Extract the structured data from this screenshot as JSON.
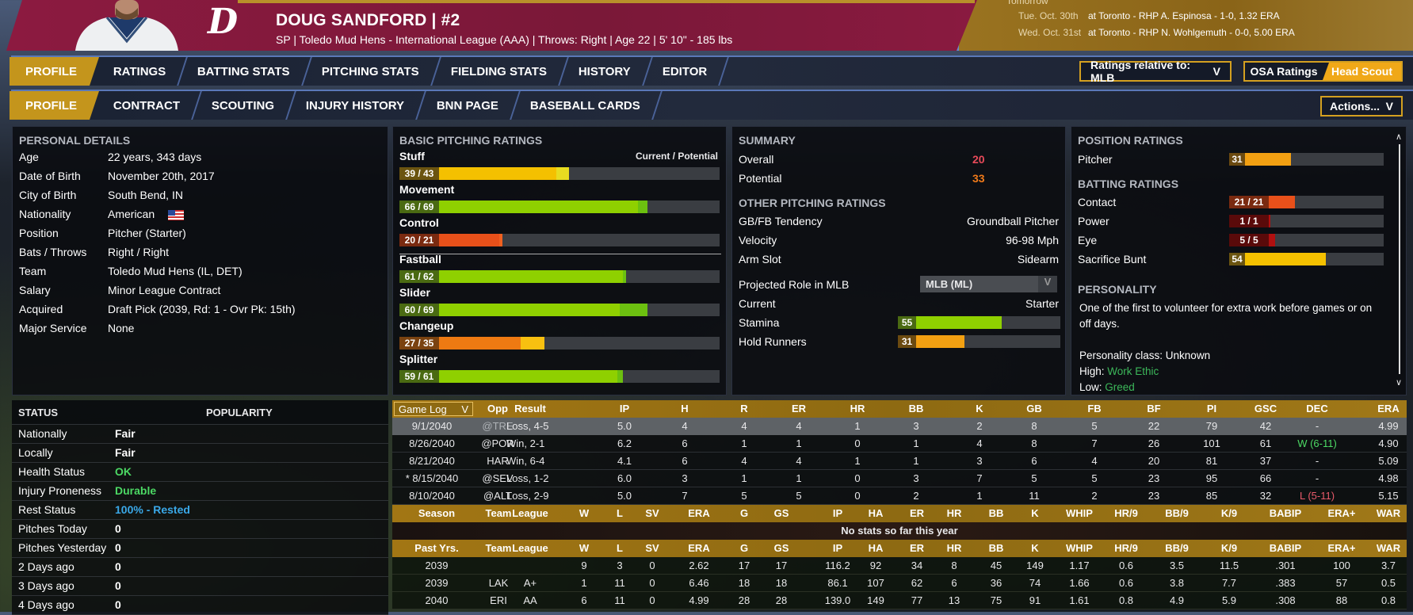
{
  "header": {
    "logo_letter": "D",
    "player_name": "DOUG SANDFORD  |  #2",
    "subline": "SP | Toledo Mud Hens - International League (AAA)  |  Throws: Right  |  Age 22  |  5' 10\" - 185 lbs",
    "upcoming_label": "Tomorrow",
    "upcoming": [
      {
        "date": "Tue. Oct. 30th",
        "text": "at Toronto - RHP A. Espinosa - 1-0, 1.32 ERA"
      },
      {
        "date": "Wed. Oct. 31st",
        "text": "at Toronto - RHP N. Wohlgemuth - 0-0, 5.00 ERA"
      }
    ]
  },
  "main_tabs": [
    "PROFILE",
    "RATINGS",
    "BATTING STATS",
    "PITCHING STATS",
    "FIELDING STATS",
    "HISTORY",
    "EDITOR"
  ],
  "sub_tabs": [
    "PROFILE",
    "CONTRACT",
    "SCOUTING",
    "INJURY HISTORY",
    "BNN PAGE",
    "BASEBALL CARDS"
  ],
  "controls": {
    "ratings_relative": "Ratings relative to: MLB",
    "chevron": "V",
    "osa": "OSA Ratings",
    "head_scout": "Head Scout",
    "actions": "Actions..."
  },
  "personal": {
    "title": "PERSONAL DETAILS",
    "rows": [
      {
        "label": "Age",
        "value": "22 years, 343 days"
      },
      {
        "label": "Date of Birth",
        "value": "November 20th, 2017"
      },
      {
        "label": "City of Birth",
        "value": "South Bend, IN"
      },
      {
        "label": "Nationality",
        "value": "American"
      },
      {
        "label": "Position",
        "value": "Pitcher (Starter)"
      },
      {
        "label": "Bats / Throws",
        "value": "Right / Right"
      },
      {
        "label": "Team",
        "value": "Toledo Mud Hens (IL, DET)"
      },
      {
        "label": "Salary",
        "value": "Minor League Contract"
      },
      {
        "label": "Acquired",
        "value": "Draft Pick (2039, Rd: 1 - Ovr Pk: 15th)"
      },
      {
        "label": "Major Service",
        "value": "None"
      }
    ]
  },
  "basic_pitching": {
    "title": "BASIC PITCHING RATINGS",
    "legend": "Current / Potential",
    "ratings": [
      {
        "name": "Stuff",
        "text": "39 / 43",
        "current": 39,
        "potential": 43
      },
      {
        "name": "Movement",
        "text": "66 / 69",
        "current": 66,
        "potential": 69
      },
      {
        "name": "Control",
        "text": "20 / 21",
        "current": 20,
        "potential": 21
      },
      {
        "name": "Fastball",
        "text": "61 / 62",
        "current": 61,
        "potential": 62
      },
      {
        "name": "Slider",
        "text": "60 / 69",
        "current": 60,
        "potential": 69
      },
      {
        "name": "Changeup",
        "text": "27 / 35",
        "current": 27,
        "potential": 35
      },
      {
        "name": "Splitter",
        "text": "59 / 61",
        "current": 59,
        "potential": 61
      }
    ]
  },
  "summary": {
    "title": "SUMMARY",
    "overall_label": "Overall",
    "overall": "20",
    "potential_label": "Potential",
    "potential": "33",
    "other_title": "OTHER PITCHING RATINGS",
    "rows": [
      {
        "label": "GB/FB Tendency",
        "value": "Groundball Pitcher"
      },
      {
        "label": "Velocity",
        "value": "96-98 Mph"
      },
      {
        "label": "Arm Slot",
        "value": "Sidearm"
      }
    ],
    "projected_label": "Projected Role in MLB",
    "projected_select": "MLB (ML)",
    "current_label": "Current",
    "current_value": "Starter",
    "stamina_label": "Stamina",
    "stamina": 55,
    "stamina_text": "55",
    "hold_label": "Hold Runners",
    "hold": 31,
    "hold_text": "31"
  },
  "position": {
    "title": "POSITION RATINGS",
    "pitcher_label": "Pitcher",
    "pitcher": 31,
    "pitcher_text": "31",
    "batting_title": "BATTING RATINGS",
    "batting": [
      {
        "name": "Contact",
        "text": "21 / 21",
        "value": 21
      },
      {
        "name": "Power",
        "text": "1 / 1",
        "value": 1
      },
      {
        "name": "Eye",
        "text": "5 / 5",
        "value": 5
      },
      {
        "name": "Sacrifice Bunt",
        "text": "54",
        "value": 54
      }
    ],
    "personality_title": "PERSONALITY",
    "personality_text": "One of the first to volunteer for extra work before games or on off days.",
    "class_text": "Personality class: Unknown",
    "high_label": "High:",
    "high_value": "Work Ethic",
    "low_label": "Low:",
    "low_value": "Greed"
  },
  "status": {
    "title": "STATUS",
    "popularity_title": "POPULARITY",
    "rows": [
      {
        "label": "Nationally",
        "value": "Fair",
        "color": "#ffffff"
      },
      {
        "label": "Locally",
        "value": "Fair",
        "color": "#ffffff"
      },
      {
        "label": "Health Status",
        "value": "OK",
        "color": "#4cd964"
      },
      {
        "label": "Injury Proneness",
        "value": "Durable",
        "color": "#4cd964"
      },
      {
        "label": "Rest Status",
        "value": "100% - Rested",
        "color": "#3aa8e8"
      },
      {
        "label": "Pitches Today",
        "value": "0",
        "color": "#ffffff"
      },
      {
        "label": "Pitches Yesterday",
        "value": "0",
        "color": "#ffffff"
      },
      {
        "label": "2 Days ago",
        "value": "0",
        "color": "#ffffff"
      },
      {
        "label": "3 Days ago",
        "value": "0",
        "color": "#ffffff"
      },
      {
        "label": "4 Days ago",
        "value": "0",
        "color": "#ffffff"
      }
    ]
  },
  "game_log": {
    "selector": "Game Log",
    "headers": [
      "Opp",
      "Result",
      "IP",
      "H",
      "R",
      "ER",
      "HR",
      "BB",
      "K",
      "GB",
      "FB",
      "BF",
      "PI",
      "GSC",
      "DEC",
      "ERA"
    ],
    "rows": [
      [
        "9/1/2040",
        "@TRE",
        "Loss, 4-5",
        "5.0",
        "4",
        "4",
        "4",
        "1",
        "3",
        "2",
        "8",
        "5",
        "22",
        "79",
        "42",
        "-",
        "4.99"
      ],
      [
        "8/26/2040",
        "@POR",
        "Win, 2-1",
        "6.2",
        "6",
        "1",
        "1",
        "0",
        "1",
        "4",
        "8",
        "7",
        "26",
        "101",
        "61",
        "W (6-11)",
        "4.90"
      ],
      [
        "8/21/2040",
        "HAR",
        "Win, 6-4",
        "4.1",
        "6",
        "4",
        "4",
        "1",
        "1",
        "3",
        "6",
        "4",
        "20",
        "81",
        "37",
        "-",
        "5.09"
      ],
      [
        "* 8/15/2040",
        "@SEV",
        "Loss, 1-2",
        "6.0",
        "3",
        "1",
        "1",
        "0",
        "3",
        "7",
        "5",
        "5",
        "23",
        "95",
        "66",
        "-",
        "4.98"
      ],
      [
        "8/10/2040",
        "@ALT",
        "Loss, 2-9",
        "5.0",
        "7",
        "5",
        "5",
        "0",
        "2",
        "1",
        "11",
        "2",
        "23",
        "85",
        "32",
        "L (5-11)",
        "5.15"
      ]
    ]
  },
  "season": {
    "headers": [
      "Season",
      "Team",
      "League",
      "W",
      "L",
      "SV",
      "ERA",
      "G",
      "GS",
      "IP",
      "HA",
      "ER",
      "HR",
      "BB",
      "K",
      "WHIP",
      "HR/9",
      "BB/9",
      "K/9",
      "BABIP",
      "ERA+",
      "WAR"
    ],
    "message": "No stats so far this year"
  },
  "past": {
    "headers": [
      "Past Yrs.",
      "Team",
      "League",
      "W",
      "L",
      "SV",
      "ERA",
      "G",
      "GS",
      "IP",
      "HA",
      "ER",
      "HR",
      "BB",
      "K",
      "WHIP",
      "HR/9",
      "BB/9",
      "K/9",
      "BABIP",
      "ERA+",
      "WAR"
    ],
    "rows": [
      [
        "2039",
        "",
        "",
        "9",
        "3",
        "0",
        "2.62",
        "17",
        "17",
        "116.2",
        "92",
        "34",
        "8",
        "45",
        "149",
        "1.17",
        "0.6",
        "3.5",
        "11.5",
        ".301",
        "100",
        "3.7"
      ],
      [
        "2039",
        "LAK",
        "A+",
        "1",
        "11",
        "0",
        "6.46",
        "18",
        "18",
        "86.1",
        "107",
        "62",
        "6",
        "36",
        "74",
        "1.66",
        "0.6",
        "3.8",
        "7.7",
        ".383",
        "57",
        "0.5"
      ],
      [
        "2040",
        "ERI",
        "AA",
        "6",
        "11",
        "0",
        "4.99",
        "28",
        "28",
        "139.0",
        "149",
        "77",
        "13",
        "75",
        "91",
        "1.61",
        "0.8",
        "4.9",
        "5.9",
        ".308",
        "88",
        "0.8"
      ]
    ]
  },
  "colors": {
    "accent": "#c4951c",
    "header_gold": "#a27614",
    "maroon": "#8c1a40",
    "win": "#4cd964",
    "loss": "#e85a6a",
    "overall": "#e84a5a",
    "potential": "#f07a1a",
    "personality_green": "#3cb85a"
  }
}
